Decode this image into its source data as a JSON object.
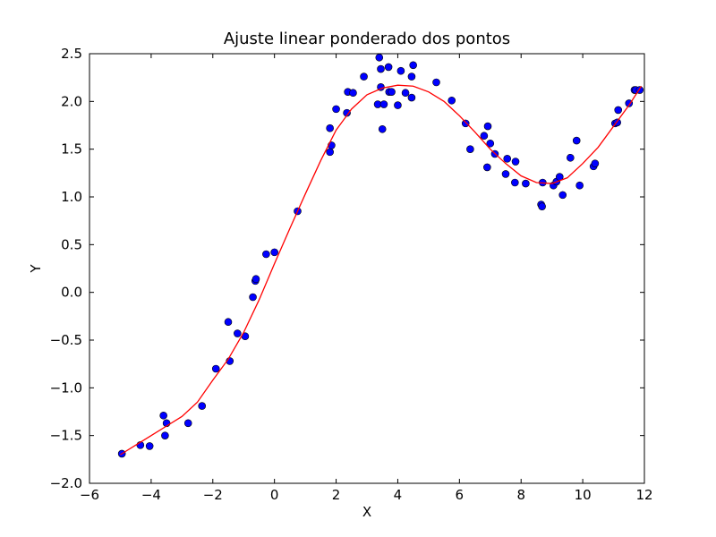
{
  "chart_data": {
    "type": "scatter",
    "title": "Ajuste linear ponderado dos pontos",
    "xlabel": "X",
    "ylabel": "Y",
    "xlim": [
      -6,
      12
    ],
    "ylim": [
      -2.0,
      2.5
    ],
    "x_ticks": [
      -6,
      -4,
      -2,
      0,
      2,
      4,
      6,
      8,
      10,
      12
    ],
    "x_tick_labels": [
      "−6",
      "−4",
      "−2",
      "0",
      "2",
      "4",
      "6",
      "8",
      "10",
      "12"
    ],
    "y_ticks": [
      -2.0,
      -1.5,
      -1.0,
      -0.5,
      0.0,
      0.5,
      1.0,
      1.5,
      2.0,
      2.5
    ],
    "y_tick_labels": [
      "−2.0",
      "−1.5",
      "−1.0",
      "−0.5",
      "0.0",
      "0.5",
      "1.0",
      "1.5",
      "2.0",
      "2.5"
    ],
    "grid": false,
    "series": [
      {
        "kind": "scatter",
        "color": "#0000ff",
        "x": [
          -4.95,
          -4.35,
          -4.05,
          -3.6,
          -3.55,
          -3.5,
          -2.8,
          -2.35,
          -1.9,
          -1.5,
          -1.45,
          -1.2,
          -0.95,
          -0.7,
          -0.62,
          -0.6,
          -0.27,
          0.0,
          0.75,
          1.8,
          1.8,
          1.85,
          2.0,
          2.35,
          2.38,
          2.55,
          2.9,
          3.35,
          3.4,
          3.45,
          3.45,
          3.5,
          3.55,
          3.7,
          3.72,
          3.8,
          4.0,
          4.1,
          4.25,
          4.45,
          4.45,
          4.5,
          5.25,
          5.75,
          6.2,
          6.35,
          6.8,
          6.9,
          6.92,
          7.0,
          7.15,
          7.5,
          7.55,
          7.8,
          7.82,
          8.15,
          8.65,
          8.68,
          8.7,
          9.05,
          9.15,
          9.25,
          9.35,
          9.6,
          9.8,
          9.9,
          10.35,
          10.4,
          11.05,
          11.12,
          11.15,
          11.5,
          11.68,
          11.72,
          11.85
        ],
        "y": [
          -1.69,
          -1.6,
          -1.61,
          -1.29,
          -1.5,
          -1.37,
          -1.37,
          -1.19,
          -0.8,
          -0.31,
          -0.72,
          -0.43,
          -0.46,
          -0.05,
          0.12,
          0.14,
          0.4,
          0.42,
          0.85,
          1.47,
          1.72,
          1.54,
          1.92,
          1.88,
          2.1,
          2.09,
          2.26,
          1.97,
          2.46,
          2.34,
          2.15,
          1.71,
          1.97,
          2.36,
          2.1,
          2.1,
          1.96,
          2.32,
          2.09,
          2.26,
          2.04,
          2.38,
          2.2,
          2.01,
          1.77,
          1.5,
          1.64,
          1.31,
          1.74,
          1.56,
          1.45,
          1.24,
          1.4,
          1.15,
          1.37,
          1.14,
          0.92,
          0.9,
          1.15,
          1.12,
          1.16,
          1.21,
          1.02,
          1.41,
          1.59,
          1.12,
          1.32,
          1.35,
          1.77,
          1.78,
          1.91,
          1.98,
          2.12,
          2.12,
          2.12
        ]
      },
      {
        "kind": "line",
        "color": "#ff0000",
        "x": [
          -5.0,
          -4.5,
          -4.0,
          -3.5,
          -3.0,
          -2.5,
          -2.0,
          -1.5,
          -1.0,
          -0.5,
          0.0,
          0.5,
          1.0,
          1.5,
          2.0,
          2.5,
          3.0,
          3.5,
          4.0,
          4.5,
          5.0,
          5.5,
          6.0,
          6.5,
          7.0,
          7.5,
          8.0,
          8.5,
          9.0,
          9.5,
          10.0,
          10.5,
          11.0,
          11.5,
          11.9
        ],
        "y": [
          -1.7,
          -1.6,
          -1.5,
          -1.4,
          -1.3,
          -1.15,
          -0.92,
          -0.7,
          -0.42,
          -0.08,
          0.3,
          0.67,
          1.03,
          1.38,
          1.7,
          1.92,
          2.07,
          2.14,
          2.17,
          2.16,
          2.1,
          2.0,
          1.85,
          1.68,
          1.5,
          1.35,
          1.22,
          1.15,
          1.14,
          1.2,
          1.35,
          1.52,
          1.74,
          1.96,
          2.16
        ]
      }
    ]
  }
}
